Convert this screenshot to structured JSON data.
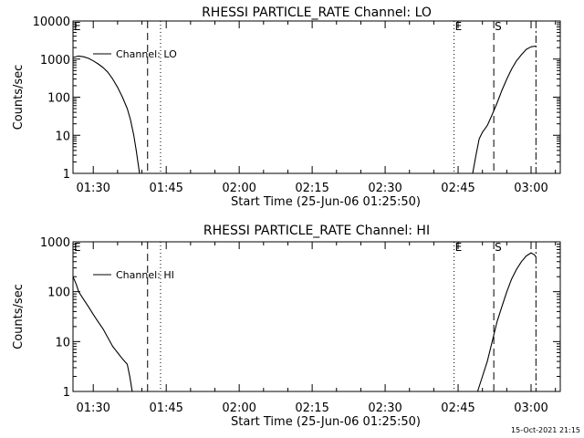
{
  "footer": {
    "timestamp": "15-Oct-2021 21:15"
  },
  "colors": {
    "background": "#ffffff",
    "foreground": "#000000"
  },
  "chart_data": [
    {
      "type": "line",
      "title": "RHESSI PARTICLE_RATE Channel: LO",
      "xlabel": "Start Time (25-Jun-06 01:25:50)",
      "ylabel": "Counts/sec",
      "y_scale": "log",
      "ylim": [
        1,
        10000
      ],
      "xlim": [
        "01:25:50",
        "03:06:00"
      ],
      "y_ticks": [
        "1",
        "10",
        "100",
        "1000",
        "10000"
      ],
      "x_ticks": [
        "01:30",
        "01:45",
        "02:00",
        "02:15",
        "02:30",
        "02:45",
        "03:00"
      ],
      "legend": {
        "label": "Channel: LO",
        "placement": "top-left"
      },
      "markers": [
        {
          "label": "E",
          "time": "01:25:50",
          "style": "dotted"
        },
        {
          "label": "",
          "time": "01:41:10",
          "style": "dashed"
        },
        {
          "label": "",
          "time": "01:43:50",
          "style": "dotted"
        },
        {
          "label": "E",
          "time": "02:44:10",
          "style": "dotted"
        },
        {
          "label": "S",
          "time": "02:52:20",
          "style": "dashed"
        },
        {
          "label": "",
          "time": "03:01:00",
          "style": "dashdot"
        }
      ],
      "series": [
        {
          "segments": [
            [
              [
                "01:25:50",
                1100
              ],
              [
                "01:27:00",
                1200
              ],
              [
                "01:28:00",
                1150
              ],
              [
                "01:29:00",
                1050
              ],
              [
                "01:30:00",
                900
              ],
              [
                "01:31:00",
                750
              ],
              [
                "01:32:00",
                600
              ],
              [
                "01:33:00",
                450
              ],
              [
                "01:34:00",
                300
              ],
              [
                "01:35:00",
                180
              ],
              [
                "01:36:00",
                100
              ],
              [
                "01:37:00",
                50
              ],
              [
                "01:37:40",
                25
              ],
              [
                "01:38:20",
                10
              ],
              [
                "01:38:50",
                4
              ],
              [
                "01:39:10",
                2
              ],
              [
                "01:39:30",
                1
              ]
            ],
            [
              [
                "02:48:00",
                1
              ],
              [
                "02:48:40",
                3
              ],
              [
                "02:49:20",
                8
              ],
              [
                "02:50:00",
                12
              ],
              [
                "02:51:00",
                18
              ],
              [
                "02:52:00",
                35
              ],
              [
                "02:53:00",
                70
              ],
              [
                "02:54:00",
                150
              ],
              [
                "02:55:00",
                300
              ],
              [
                "02:56:00",
                550
              ],
              [
                "02:57:00",
                900
              ],
              [
                "02:58:00",
                1300
              ],
              [
                "02:59:00",
                1800
              ],
              [
                "03:00:00",
                2100
              ],
              [
                "03:01:00",
                2200
              ]
            ]
          ]
        }
      ]
    },
    {
      "type": "line",
      "title": "RHESSI PARTICLE_RATE Channel: HI",
      "xlabel": "Start Time (25-Jun-06 01:25:50)",
      "ylabel": "Counts/sec",
      "y_scale": "log",
      "ylim": [
        1,
        1000
      ],
      "xlim": [
        "01:25:50",
        "03:06:00"
      ],
      "y_ticks": [
        "1",
        "10",
        "100",
        "1000"
      ],
      "x_ticks": [
        "01:30",
        "01:45",
        "02:00",
        "02:15",
        "02:30",
        "02:45",
        "03:00"
      ],
      "legend": {
        "label": "Channel: HI",
        "placement": "top-left"
      },
      "markers": [
        {
          "label": "E",
          "time": "01:25:50",
          "style": "dotted"
        },
        {
          "label": "",
          "time": "01:41:10",
          "style": "dashed"
        },
        {
          "label": "",
          "time": "01:43:50",
          "style": "dotted"
        },
        {
          "label": "E",
          "time": "02:44:10",
          "style": "dotted"
        },
        {
          "label": "S",
          "time": "02:52:20",
          "style": "dashed"
        },
        {
          "label": "",
          "time": "03:01:00",
          "style": "dashdot"
        }
      ],
      "series": [
        {
          "segments": [
            [
              [
                "01:25:50",
                200
              ],
              [
                "01:26:30",
                140
              ],
              [
                "01:27:00",
                100
              ],
              [
                "01:28:00",
                70
              ],
              [
                "01:29:00",
                50
              ],
              [
                "01:30:00",
                35
              ],
              [
                "01:31:00",
                25
              ],
              [
                "01:32:00",
                18
              ],
              [
                "01:33:00",
                12
              ],
              [
                "01:34:00",
                8
              ],
              [
                "01:35:00",
                6
              ],
              [
                "01:36:00",
                4.5
              ],
              [
                "01:37:00",
                3.5
              ],
              [
                "01:37:30",
                2
              ],
              [
                "01:38:00",
                1
              ]
            ],
            [
              [
                "02:49:00",
                1
              ],
              [
                "02:50:00",
                2
              ],
              [
                "02:51:00",
                4
              ],
              [
                "02:52:00",
                10
              ],
              [
                "02:53:00",
                25
              ],
              [
                "02:54:00",
                50
              ],
              [
                "02:55:00",
                100
              ],
              [
                "02:56:00",
                180
              ],
              [
                "02:57:00",
                280
              ],
              [
                "02:58:00",
                400
              ],
              [
                "02:59:00",
                520
              ],
              [
                "03:00:00",
                600
              ],
              [
                "03:00:40",
                550
              ],
              [
                "03:01:00",
                500
              ]
            ]
          ]
        }
      ]
    }
  ]
}
